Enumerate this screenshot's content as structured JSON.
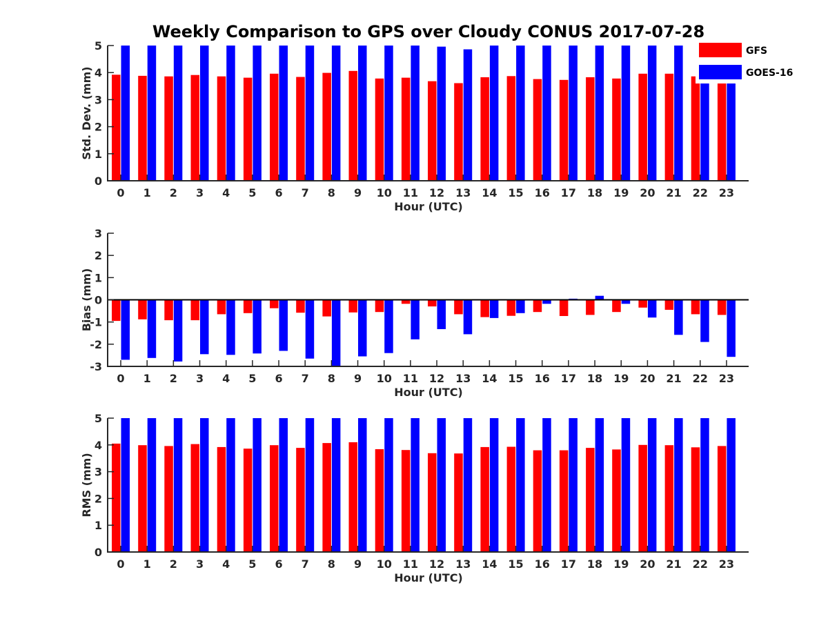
{
  "chart_data": {
    "type": "bar",
    "title": "Weekly Comparison to GPS over Cloudy CONUS 2017-07-28",
    "legend": {
      "placement": "top-right",
      "entries": [
        "GFS",
        "GOES-16"
      ]
    },
    "colors": {
      "GFS": "#ff0000",
      "GOES-16": "#0000ff"
    },
    "grid": false,
    "categories": [
      "0",
      "1",
      "2",
      "3",
      "4",
      "5",
      "6",
      "7",
      "8",
      "9",
      "10",
      "11",
      "12",
      "13",
      "14",
      "15",
      "16",
      "17",
      "18",
      "19",
      "20",
      "21",
      "22",
      "23"
    ],
    "panels": [
      {
        "ylabel": "Std. Dev. (mm)",
        "xlabel": "Hour (UTC)",
        "ylim": [
          0,
          5
        ],
        "yticks": [
          0,
          1,
          2,
          3,
          4,
          5
        ],
        "series": [
          {
            "name": "GFS",
            "values": [
              3.92,
              3.88,
              3.86,
              3.91,
              3.86,
              3.81,
              3.96,
              3.84,
              3.99,
              4.06,
              3.78,
              3.81,
              3.68,
              3.61,
              3.83,
              3.87,
              3.76,
              3.73,
              3.83,
              3.78,
              3.96,
              3.96,
              3.86,
              3.93
            ]
          },
          {
            "name": "GOES-16",
            "values": [
              5.2,
              5.2,
              5.2,
              5.2,
              5.2,
              5.2,
              5.2,
              5.2,
              5.2,
              5.2,
              5.2,
              5.2,
              4.96,
              4.86,
              5.2,
              5.2,
              5.2,
              5.2,
              5.2,
              5.2,
              5.2,
              5.2,
              5.2,
              5.2
            ]
          }
        ]
      },
      {
        "ylabel": "Bias (mm)",
        "xlabel": "Hour (UTC)",
        "ylim": [
          -3,
          3
        ],
        "yticks": [
          -3,
          -2,
          -1,
          0,
          1,
          2,
          3
        ],
        "series": [
          {
            "name": "GFS",
            "values": [
              -0.95,
              -0.88,
              -0.92,
              -0.92,
              -0.65,
              -0.6,
              -0.38,
              -0.58,
              -0.75,
              -0.57,
              -0.55,
              -0.18,
              -0.3,
              -0.65,
              -0.78,
              -0.72,
              -0.55,
              -0.73,
              -0.68,
              -0.55,
              -0.35,
              -0.45,
              -0.65,
              -0.68
            ]
          },
          {
            "name": "GOES-16",
            "values": [
              -2.7,
              -2.62,
              -2.78,
              -2.45,
              -2.48,
              -2.42,
              -2.3,
              -2.65,
              -3.1,
              -2.55,
              -2.4,
              -1.78,
              -1.32,
              -1.55,
              -0.82,
              -0.6,
              -0.18,
              0.05,
              0.18,
              -0.18,
              -0.8,
              -1.58,
              -1.9,
              -2.57
            ]
          }
        ]
      },
      {
        "ylabel": "RMS (mm)",
        "xlabel": "Hour (UTC)",
        "ylim": [
          0,
          5
        ],
        "yticks": [
          0,
          1,
          2,
          3,
          4,
          5
        ],
        "series": [
          {
            "name": "GFS",
            "values": [
              4.05,
              3.99,
              3.96,
              4.03,
              3.92,
              3.86,
              3.99,
              3.89,
              4.07,
              4.1,
              3.84,
              3.81,
              3.69,
              3.68,
              3.92,
              3.93,
              3.8,
              3.8,
              3.89,
              3.83,
              4.0,
              3.99,
              3.91,
              3.96
            ]
          },
          {
            "name": "GOES-16",
            "values": [
              5.2,
              5.2,
              5.2,
              5.2,
              5.2,
              5.2,
              5.2,
              5.2,
              5.2,
              5.2,
              5.2,
              5.2,
              5.2,
              5.2,
              5.2,
              5.2,
              5.2,
              5.2,
              5.2,
              5.2,
              5.2,
              5.2,
              5.2,
              5.2
            ]
          }
        ]
      }
    ]
  }
}
